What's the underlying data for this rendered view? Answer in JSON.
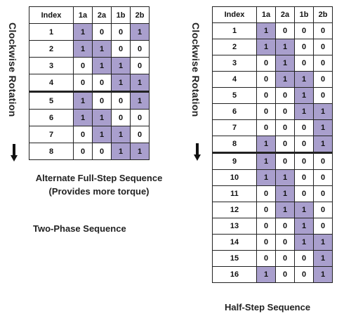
{
  "colors": {
    "active_cell": "#a99fcd",
    "border": "#222222"
  },
  "left_panel": {
    "side_label": "Clockwise Rotation",
    "arrow_icon": "down-arrow-icon",
    "headers": [
      "Index",
      "1a",
      "2a",
      "1b",
      "2b"
    ],
    "rows": [
      [
        "1",
        "1",
        "0",
        "0",
        "1"
      ],
      [
        "2",
        "1",
        "1",
        "0",
        "0"
      ],
      [
        "3",
        "0",
        "1",
        "1",
        "0"
      ],
      [
        "4",
        "0",
        "0",
        "1",
        "1"
      ],
      [
        "5",
        "1",
        "0",
        "0",
        "1"
      ],
      [
        "6",
        "1",
        "1",
        "0",
        "0"
      ],
      [
        "7",
        "0",
        "1",
        "1",
        "0"
      ],
      [
        "8",
        "0",
        "0",
        "1",
        "1"
      ]
    ],
    "caption_line1": "Alternate Full-Step Sequence",
    "caption_line2": "(Provides more torque)",
    "section_title": "Two-Phase Sequence"
  },
  "right_panel": {
    "side_label": "Clockwise Rotation",
    "arrow_icon": "down-arrow-icon",
    "headers": [
      "Index",
      "1a",
      "2a",
      "1b",
      "2b"
    ],
    "rows": [
      [
        "1",
        "1",
        "0",
        "0",
        "0"
      ],
      [
        "2",
        "1",
        "1",
        "0",
        "0"
      ],
      [
        "3",
        "0",
        "1",
        "0",
        "0"
      ],
      [
        "4",
        "0",
        "1",
        "1",
        "0"
      ],
      [
        "5",
        "0",
        "0",
        "1",
        "0"
      ],
      [
        "6",
        "0",
        "0",
        "1",
        "1"
      ],
      [
        "7",
        "0",
        "0",
        "0",
        "1"
      ],
      [
        "8",
        "1",
        "0",
        "0",
        "1"
      ],
      [
        "9",
        "1",
        "0",
        "0",
        "0"
      ],
      [
        "10",
        "1",
        "1",
        "0",
        "0"
      ],
      [
        "11",
        "0",
        "1",
        "0",
        "0"
      ],
      [
        "12",
        "0",
        "1",
        "1",
        "0"
      ],
      [
        "13",
        "0",
        "0",
        "1",
        "0"
      ],
      [
        "14",
        "0",
        "0",
        "1",
        "1"
      ],
      [
        "15",
        "0",
        "0",
        "0",
        "1"
      ],
      [
        "16",
        "1",
        "0",
        "0",
        "1"
      ]
    ],
    "caption": "Half-Step Sequence"
  }
}
